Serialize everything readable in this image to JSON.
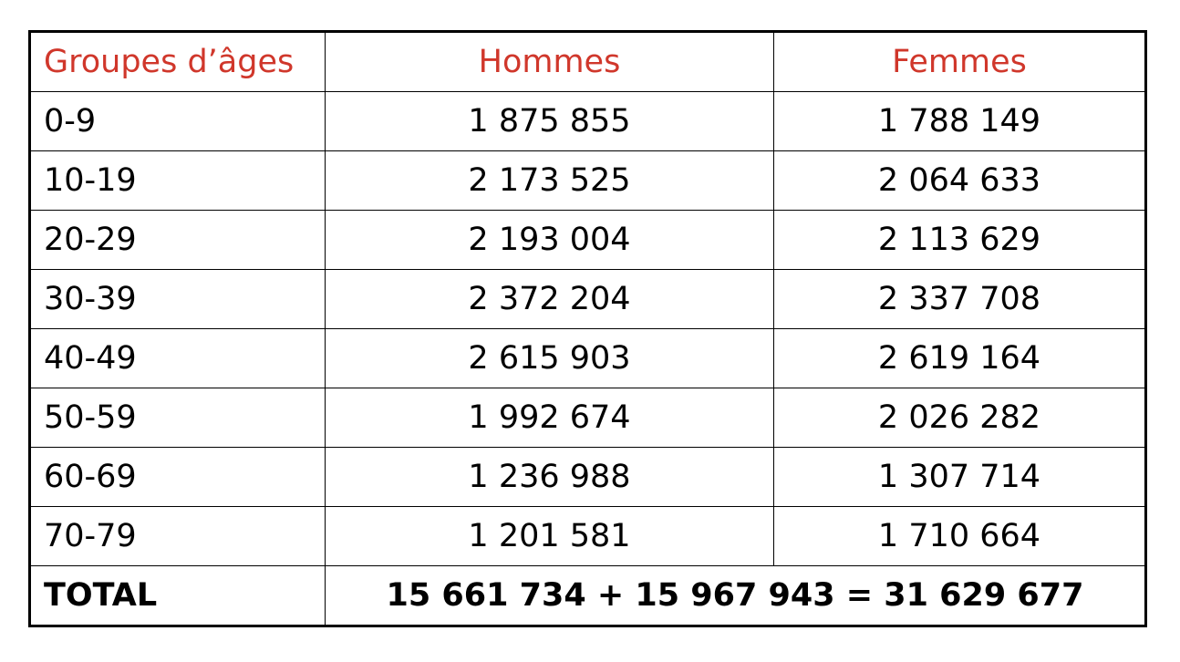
{
  "table": {
    "header_color": "#d0372b",
    "headers": [
      "Groupes d’âges",
      "Hommes",
      "Femmes"
    ],
    "rows": [
      {
        "age": "0-9",
        "hommes": "1 875 855",
        "femmes": "1 788 149"
      },
      {
        "age": "10-19",
        "hommes": "2 173 525",
        "femmes": "2 064 633"
      },
      {
        "age": "20-29",
        "hommes": "2 193 004",
        "femmes": "2 113 629"
      },
      {
        "age": "30-39",
        "hommes": "2 372 204",
        "femmes": "2 337 708"
      },
      {
        "age": "40-49",
        "hommes": "2 615 903",
        "femmes": "2 619 164"
      },
      {
        "age": "50-59",
        "hommes": "1 992 674",
        "femmes": "2 026 282"
      },
      {
        "age": "60-69",
        "hommes": "1 236 988",
        "femmes": "1 307 714"
      },
      {
        "age": "70-79",
        "hommes": "1 201 581",
        "femmes": "1 710 664"
      }
    ],
    "total": {
      "label": "TOTAL",
      "value": "15 661 734 + 15 967 943 =  31 629 677"
    }
  }
}
